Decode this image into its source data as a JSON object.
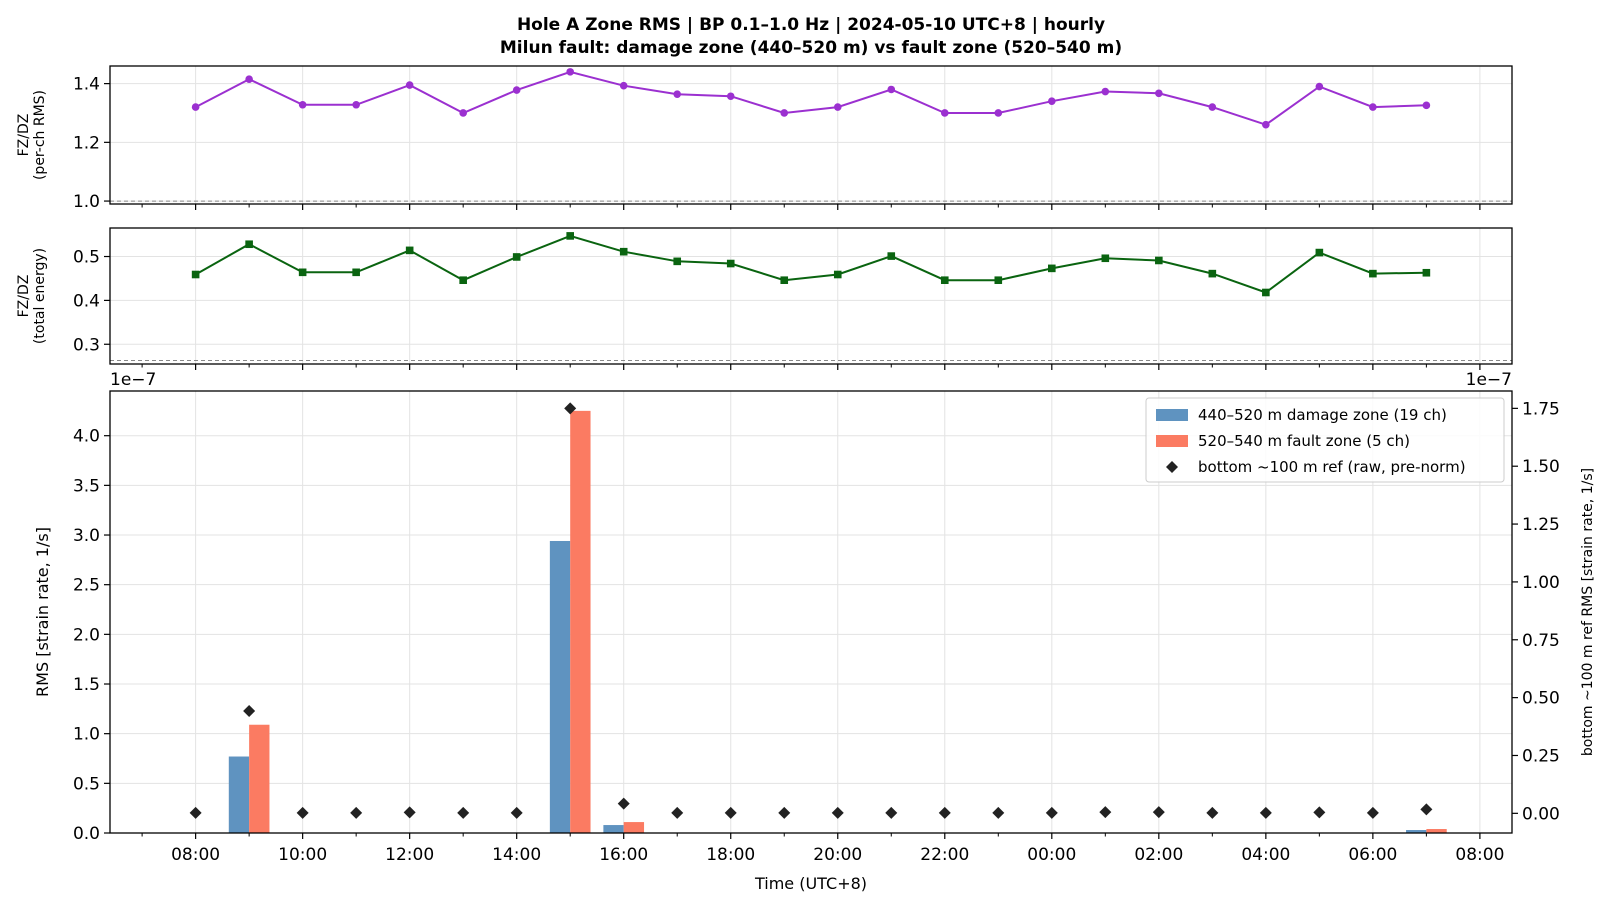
{
  "figure": {
    "title_line1": "Hole A Zone RMS  |  BP 0.1–1.0 Hz  |  2024-05-10 UTC+8  |  hourly",
    "title_line2": "Milun fault: damage zone (440–520 m) vs fault zone (520–540 m)"
  },
  "colors": {
    "per_ch_line": "#9b30d0",
    "total_energy_line": "#0a6410",
    "damage_zone": "#5f93c0",
    "fault_zone": "#fb7b62",
    "reference": "#222222",
    "ref_line": "#888888"
  },
  "chart_data": [
    {
      "type": "line",
      "ylabel": "FZ/DZ\n(per-ch RMS)",
      "ylim": [
        0.99,
        1.46
      ],
      "yticks": [
        1.0,
        1.2,
        1.4
      ],
      "ytick_labels": [
        "1.0",
        "1.2",
        "1.4"
      ],
      "reference_line": 1.0,
      "marker": "circle",
      "grid": true,
      "x": [
        0,
        1,
        2,
        3,
        4,
        5,
        6,
        7,
        8,
        9,
        10,
        11,
        12,
        13,
        14,
        15,
        16,
        17,
        18,
        19,
        20,
        21,
        22,
        23
      ],
      "values": [
        1.32,
        1.415,
        1.328,
        1.328,
        1.395,
        1.3,
        1.378,
        1.44,
        1.393,
        1.364,
        1.357,
        1.3,
        1.32,
        1.38,
        1.3,
        1.3,
        1.34,
        1.373,
        1.367,
        1.32,
        1.26,
        1.39,
        1.32,
        1.326
      ]
    },
    {
      "type": "line",
      "ylabel": "FZ/DZ\n(total energy)",
      "ylim": [
        0.255,
        0.565
      ],
      "yticks": [
        0.3,
        0.4,
        0.5
      ],
      "ytick_labels": [
        "0.3",
        "0.4",
        "0.5"
      ],
      "reference_line": 0.263,
      "marker": "square",
      "grid": true,
      "x": [
        0,
        1,
        2,
        3,
        4,
        5,
        6,
        7,
        8,
        9,
        10,
        11,
        12,
        13,
        14,
        15,
        16,
        17,
        18,
        19,
        20,
        21,
        22,
        23
      ],
      "values": [
        0.459,
        0.528,
        0.464,
        0.464,
        0.514,
        0.446,
        0.499,
        0.547,
        0.511,
        0.489,
        0.484,
        0.446,
        0.459,
        0.501,
        0.446,
        0.446,
        0.473,
        0.496,
        0.491,
        0.461,
        0.418,
        0.509,
        0.461,
        0.463
      ]
    },
    {
      "type": "bar",
      "xlabel": "Time (UTC+8)",
      "ylabel": "RMS  [strain rate, 1/s]",
      "ylabel_right": "bottom ~100 m ref RMS  [strain rate, 1/s]",
      "offset_left": "1e−7",
      "offset_right": "1e−7",
      "ylim": [
        0,
        4.45
      ],
      "yticks": [
        0,
        0.5,
        1.0,
        1.5,
        2.0,
        2.5,
        3.0,
        3.5,
        4.0
      ],
      "ytick_labels": [
        "0.0",
        "0.5",
        "1.0",
        "1.5",
        "2.0",
        "2.5",
        "3.0",
        "3.5",
        "4.0"
      ],
      "ylim_right": [
        -0.085,
        1.825
      ],
      "yticks_right": [
        0,
        0.25,
        0.5,
        0.75,
        1.0,
        1.25,
        1.5,
        1.75
      ],
      "ytick_labels_right": [
        "0.00",
        "0.25",
        "0.50",
        "0.75",
        "1.00",
        "1.25",
        "1.50",
        "1.75"
      ],
      "xlim": [
        -1.6,
        24.6
      ],
      "xticks": [
        0,
        2,
        4,
        6,
        8,
        10,
        12,
        14,
        16,
        18,
        20,
        22,
        24
      ],
      "xtick_labels": [
        "08:00",
        "10:00",
        "12:00",
        "14:00",
        "16:00",
        "18:00",
        "20:00",
        "22:00",
        "00:00",
        "02:00",
        "04:00",
        "06:00",
        "08:00"
      ],
      "grid": true,
      "legend_position": "top-right",
      "x": [
        0,
        1,
        2,
        3,
        4,
        5,
        6,
        7,
        8,
        9,
        10,
        11,
        12,
        13,
        14,
        15,
        16,
        17,
        18,
        19,
        20,
        21,
        22,
        23
      ],
      "series": [
        {
          "name": "440–520 m  damage zone (19 ch)",
          "kind": "bar",
          "axis": "left",
          "values": [
            0.003,
            0.77,
            0.003,
            0.003,
            0.003,
            0.003,
            0.003,
            2.94,
            0.08,
            0.003,
            0.003,
            0.003,
            0.003,
            0.003,
            0.003,
            0.003,
            0.003,
            0.003,
            0.003,
            0.003,
            0.003,
            0.003,
            0.003,
            0.03
          ]
        },
        {
          "name": "520–540 m  fault zone (5 ch)",
          "kind": "bar",
          "axis": "left",
          "values": [
            0.004,
            1.09,
            0.004,
            0.004,
            0.004,
            0.004,
            0.004,
            4.25,
            0.11,
            0.004,
            0.004,
            0.004,
            0.004,
            0.004,
            0.004,
            0.004,
            0.004,
            0.004,
            0.004,
            0.004,
            0.004,
            0.004,
            0.004,
            0.04
          ]
        },
        {
          "name": "bottom ~100 m ref (raw, pre-norm)",
          "kind": "scatter",
          "axis": "right",
          "values": [
            0.002,
            0.442,
            0.002,
            0.002,
            0.004,
            0.002,
            0.002,
            1.75,
            0.042,
            0.002,
            0.002,
            0.002,
            0.002,
            0.002,
            0.002,
            0.002,
            0.002,
            0.005,
            0.005,
            0.002,
            0.002,
            0.004,
            0.002,
            0.017
          ]
        }
      ]
    }
  ]
}
